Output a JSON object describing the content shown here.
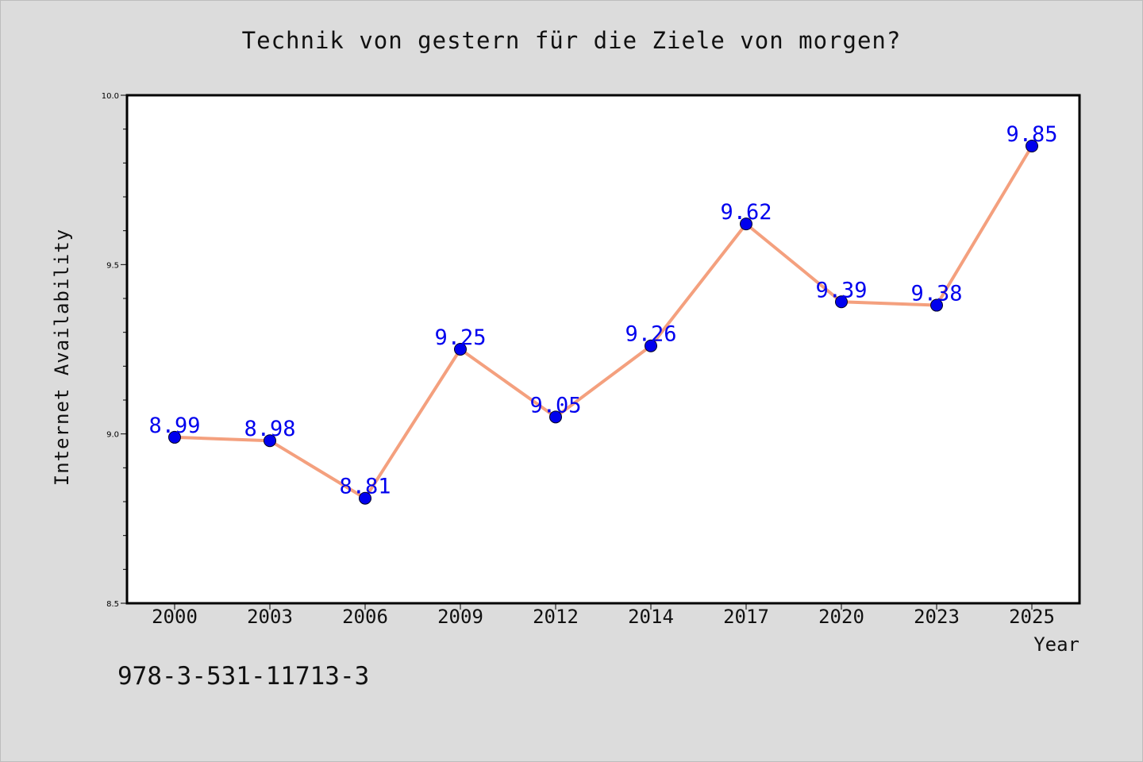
{
  "page": {
    "background": "#dcdcdc"
  },
  "chart_data": {
    "type": "line",
    "title": "Technik von gestern für die Ziele von morgen?",
    "xlabel": "Year",
    "ylabel": "Internet Availability",
    "categories": [
      "2000",
      "2003",
      "2006",
      "2009",
      "2012",
      "2014",
      "2017",
      "2020",
      "2023",
      "2025"
    ],
    "series": [
      {
        "values": [
          8.99,
          8.98,
          8.81,
          9.25,
          9.05,
          9.26,
          9.62,
          9.39,
          9.38,
          9.85
        ]
      }
    ],
    "data_labels": [
      "8.99",
      "8.98",
      "8.81",
      "9.25",
      "9.05",
      "9.26",
      "9.62",
      "9.39",
      "9.38",
      "9.85"
    ],
    "ylim": [
      8.5,
      10.0
    ],
    "yticks": [
      "8.5",
      "9.0",
      "9.5",
      "10.0"
    ],
    "grid": false,
    "line_color": "#f4a07e",
    "marker_color": "#0000ee",
    "label_color": "#0000ee"
  },
  "footer": {
    "isbn": "978-3-531-11713-3"
  }
}
